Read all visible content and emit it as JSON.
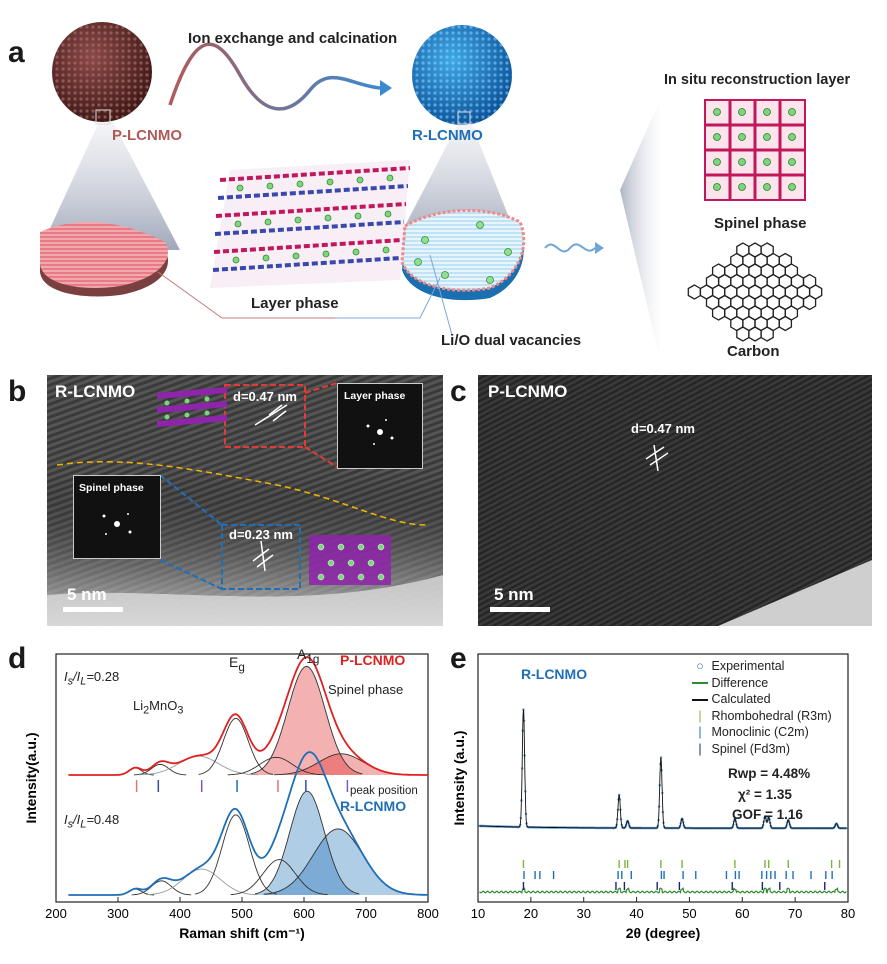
{
  "panel_a": {
    "label": "a",
    "process_text": "Ion exchange and calcination",
    "p_material": "P-LCNMO",
    "r_material": "R-LCNMO",
    "layer_phase": "Layer phase",
    "vacancies": "Li/O dual vacancies",
    "reconstruction_title": "In situ reconstruction layer",
    "spinel_phase": "Spinel phase",
    "carbon": "Carbon"
  },
  "panel_b": {
    "label": "b",
    "sample": "R-LCNMO",
    "d_top": "d=0.47 nm",
    "d_bottom": "d=0.23 nm",
    "inset_layer": "Layer phase",
    "inset_spinel": "Spinel phase",
    "scale": "5 nm"
  },
  "panel_c": {
    "label": "c",
    "sample": "P-LCNMO",
    "d": "d=0.47 nm",
    "scale": "5 nm"
  },
  "panel_d": {
    "label": "d",
    "ratio_p": "0.28",
    "ratio_r": "0.48",
    "peak_li2mno3": "Li2MnO3",
    "peak_eg": "Eg",
    "peak_a1g": "A1g",
    "spinel_phase": "Spinel phase",
    "peak_position": "peak position",
    "legend_p": "P-LCNMO",
    "legend_r": "R-LCNMO"
  },
  "panel_e": {
    "label": "e",
    "sample": "R-LCNMO",
    "legend": [
      "Experimental",
      "Difference",
      "Calculated",
      "Rhombohedral (R3m)",
      "Monoclinic (C2m)",
      "Spinel (Fd3m)"
    ],
    "rwp": "Rwp = 4.48%",
    "chi2": "χ² = 1.35",
    "gof": "GOF = 1.16"
  },
  "chart_data": [
    {
      "type": "line",
      "title": "",
      "xlabel": "Raman shift (cm⁻¹)",
      "ylabel": "Intensity(a.u.)",
      "xlim": [
        200,
        800
      ],
      "x_ticks": [
        200,
        300,
        400,
        500,
        600,
        700,
        800
      ],
      "colors": {
        "P": "#e02020",
        "R": "#1e6fb8"
      },
      "series": [
        {
          "name": "P-LCNMO",
          "peaks": [
            {
              "center": 328,
              "height": 0.06,
              "width": 10
            },
            {
              "center": 368,
              "height": 0.09,
              "width": 14
            },
            {
              "center": 430,
              "height": 0.16,
              "width": 32
            },
            {
              "center": 490,
              "height": 0.48,
              "width": 20
            },
            {
              "center": 555,
              "height": 0.15,
              "width": 26
            },
            {
              "center": 604,
              "height": 0.92,
              "width": 30
            },
            {
              "center": 660,
              "height": 0.18,
              "width": 36
            }
          ]
        },
        {
          "name": "R-LCNMO",
          "peaks": [
            {
              "center": 328,
              "height": 0.05,
              "width": 10
            },
            {
              "center": 370,
              "height": 0.12,
              "width": 16
            },
            {
              "center": 435,
              "height": 0.22,
              "width": 30
            },
            {
              "center": 490,
              "height": 0.68,
              "width": 22
            },
            {
              "center": 560,
              "height": 0.3,
              "width": 26
            },
            {
              "center": 605,
              "height": 0.88,
              "width": 28
            },
            {
              "center": 655,
              "height": 0.56,
              "width": 40
            }
          ]
        }
      ],
      "peak_positions": [
        330,
        365,
        435,
        492,
        558,
        603,
        670
      ]
    },
    {
      "type": "line",
      "title": "",
      "xlabel": "2θ (degree)",
      "ylabel": "Intensity (a.u.)",
      "xlim": [
        10,
        80
      ],
      "x_ticks": [
        10,
        20,
        30,
        40,
        50,
        60,
        70,
        80
      ],
      "colors": {
        "experimental": "#1e6fb8",
        "difference": "#2e8b2e",
        "calculated": "#111111",
        "rhombohedral": "#7cb342",
        "monoclinic": "#1e6fb8",
        "spinel": "#1a237e"
      },
      "peaks": [
        {
          "two_theta": 18.6,
          "intensity": 1.0
        },
        {
          "two_theta": 36.7,
          "intensity": 0.28
        },
        {
          "two_theta": 38.3,
          "intensity": 0.06
        },
        {
          "two_theta": 44.6,
          "intensity": 0.6
        },
        {
          "two_theta": 48.6,
          "intensity": 0.08
        },
        {
          "two_theta": 58.6,
          "intensity": 0.08
        },
        {
          "two_theta": 64.3,
          "intensity": 0.1
        },
        {
          "two_theta": 65.0,
          "intensity": 0.09
        },
        {
          "two_theta": 68.7,
          "intensity": 0.07
        },
        {
          "two_theta": 77.8,
          "intensity": 0.04
        }
      ],
      "rhombohedral_ticks": [
        18.6,
        36.7,
        37.8,
        38.3,
        44.6,
        48.6,
        58.6,
        64.3,
        65.0,
        68.7,
        76.9,
        78.4
      ],
      "monoclinic_ticks": [
        18.7,
        20.8,
        21.7,
        24.3,
        36.5,
        37.2,
        39.0,
        44.7,
        45.2,
        48.8,
        51.2,
        57.0,
        58.7,
        59.4,
        63.7,
        64.6,
        65.4,
        66.2,
        68.3,
        69.6,
        73.0,
        75.8,
        77.0
      ],
      "spinel_ticks": [
        18.6,
        36.1,
        37.7,
        43.9,
        48.1,
        58.1,
        63.8,
        67.1,
        75.6
      ]
    }
  ]
}
